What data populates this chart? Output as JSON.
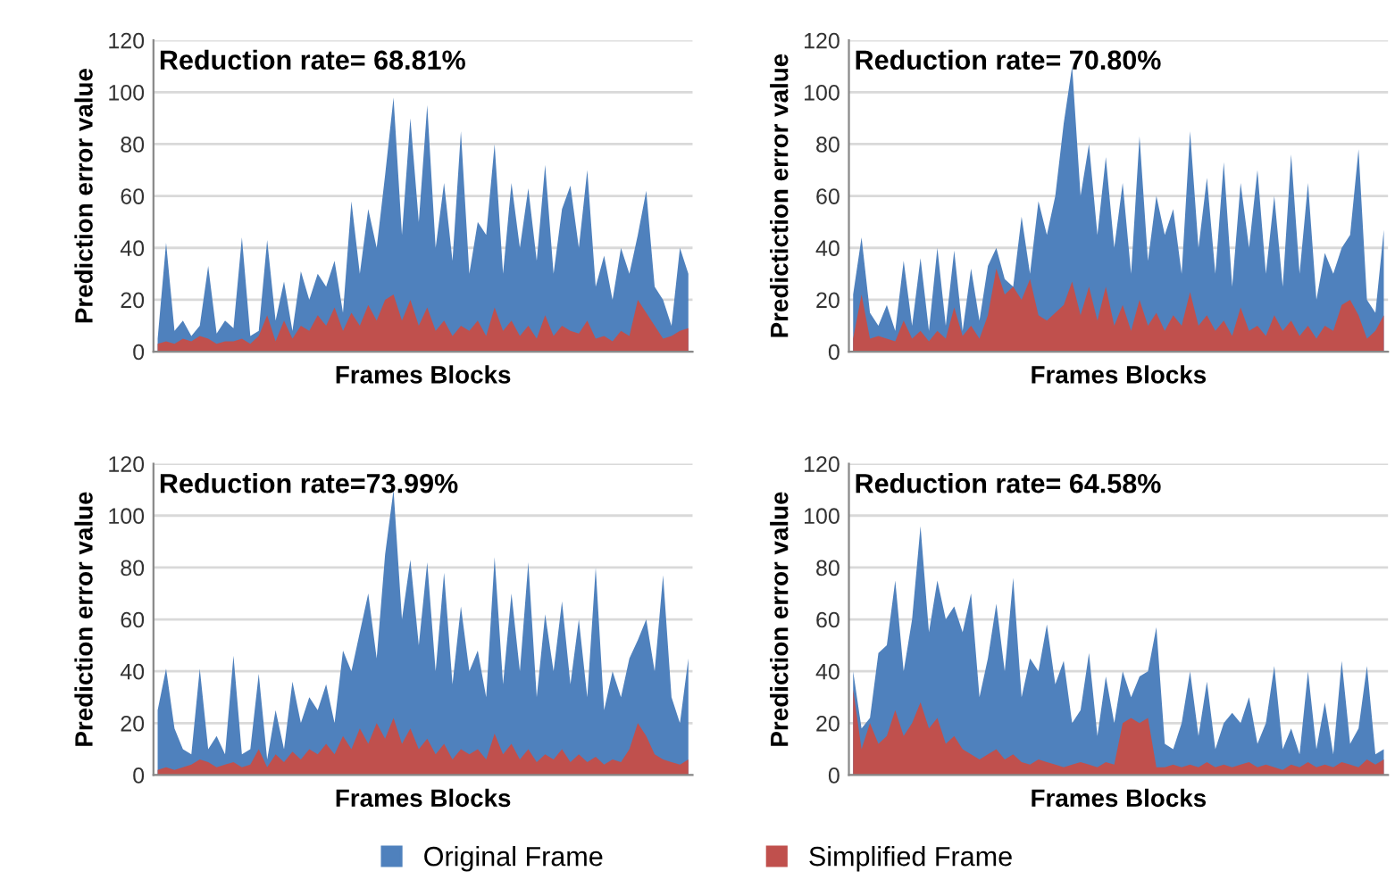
{
  "chart_data": [
    {
      "type": "area",
      "xlabel": "Frames Blocks",
      "ylabel": "Prediction error value",
      "annotations": [
        "Reduction rate= 68.81%"
      ],
      "ylim": [
        0,
        120
      ],
      "yticks": [
        0,
        20,
        40,
        60,
        80,
        100,
        120
      ],
      "grid": "y",
      "legend": false,
      "categories": [
        null,
        null,
        null,
        null,
        null,
        null,
        null,
        null,
        null,
        null,
        null,
        null,
        null,
        null,
        null,
        null,
        null,
        null,
        null,
        null,
        null,
        null,
        null,
        null,
        null,
        null,
        null,
        null,
        null,
        null,
        null,
        null,
        null,
        null,
        null,
        null,
        null,
        null,
        null,
        null,
        null,
        null,
        null,
        null,
        null,
        null,
        null,
        null,
        null,
        null,
        null,
        null,
        null,
        null,
        null,
        null,
        null,
        null,
        null,
        null,
        null,
        null,
        null,
        null
      ],
      "series": [
        {
          "color": "#4f81bd",
          "values": [
            5,
            42,
            8,
            12,
            6,
            10,
            33,
            7,
            12,
            9,
            44,
            6,
            8,
            43,
            12,
            27,
            8,
            31,
            20,
            30,
            25,
            35,
            15,
            58,
            30,
            55,
            40,
            68,
            98,
            45,
            90,
            50,
            95,
            40,
            65,
            35,
            85,
            30,
            50,
            45,
            80,
            30,
            65,
            40,
            63,
            35,
            72,
            30,
            55,
            64,
            40,
            70,
            25,
            37,
            20,
            40,
            30,
            45,
            62,
            25,
            20,
            10,
            40,
            30
          ]
        },
        {
          "color": "#c0504d",
          "values": [
            3,
            4,
            3,
            5,
            4,
            6,
            5,
            3,
            4,
            4,
            5,
            3,
            6,
            14,
            4,
            12,
            5,
            10,
            8,
            14,
            10,
            17,
            8,
            15,
            10,
            18,
            12,
            20,
            22,
            12,
            20,
            10,
            17,
            8,
            12,
            6,
            10,
            8,
            12,
            6,
            17,
            8,
            12,
            6,
            10,
            5,
            14,
            6,
            10,
            8,
            7,
            12,
            5,
            6,
            4,
            8,
            6,
            20,
            15,
            10,
            5,
            6,
            8,
            9
          ]
        }
      ]
    },
    {
      "type": "area",
      "xlabel": "Frames Blocks",
      "ylabel": "Predictiction error value",
      "annotations": [
        "Reduction rate= 70.80%"
      ],
      "ylim": [
        0,
        120
      ],
      "yticks": [
        0,
        20,
        40,
        60,
        80,
        100,
        120
      ],
      "grid": "y",
      "legend": false,
      "categories": [
        null,
        null,
        null,
        null,
        null,
        null,
        null,
        null,
        null,
        null,
        null,
        null,
        null,
        null,
        null,
        null,
        null,
        null,
        null,
        null,
        null,
        null,
        null,
        null,
        null,
        null,
        null,
        null,
        null,
        null,
        null,
        null,
        null,
        null,
        null,
        null,
        null,
        null,
        null,
        null,
        null,
        null,
        null,
        null,
        null,
        null,
        null,
        null,
        null,
        null,
        null,
        null,
        null,
        null,
        null,
        null,
        null,
        null,
        null,
        null,
        null,
        null,
        null,
        null
      ],
      "series": [
        {
          "color": "#4f81bd",
          "values": [
            22,
            44,
            15,
            10,
            18,
            8,
            35,
            10,
            36,
            8,
            40,
            10,
            39,
            8,
            32,
            12,
            33,
            40,
            28,
            25,
            52,
            30,
            58,
            45,
            60,
            88,
            110,
            60,
            80,
            45,
            75,
            40,
            65,
            30,
            83,
            35,
            60,
            45,
            55,
            30,
            85,
            40,
            67,
            30,
            73,
            25,
            65,
            40,
            70,
            30,
            60,
            25,
            76,
            30,
            65,
            20,
            38,
            30,
            40,
            45,
            78,
            20,
            15,
            47
          ]
        },
        {
          "color": "#c0504d",
          "values": [
            5,
            22,
            5,
            6,
            5,
            4,
            12,
            5,
            8,
            4,
            8,
            5,
            17,
            6,
            10,
            5,
            14,
            32,
            22,
            25,
            20,
            28,
            14,
            12,
            15,
            18,
            27,
            14,
            25,
            12,
            25,
            10,
            18,
            8,
            20,
            10,
            15,
            8,
            14,
            10,
            23,
            10,
            14,
            8,
            12,
            6,
            17,
            8,
            10,
            6,
            14,
            8,
            12,
            6,
            10,
            5,
            10,
            8,
            18,
            20,
            14,
            5,
            8,
            14
          ]
        }
      ]
    },
    {
      "type": "area",
      "xlabel": "Frames Blocks",
      "ylabel": "Prediction error value",
      "annotations": [
        "Reduction rate=73.99%"
      ],
      "ylim": [
        0,
        120
      ],
      "yticks": [
        0,
        20,
        40,
        60,
        80,
        100,
        120
      ],
      "grid": "y",
      "legend": false,
      "categories": [
        null,
        null,
        null,
        null,
        null,
        null,
        null,
        null,
        null,
        null,
        null,
        null,
        null,
        null,
        null,
        null,
        null,
        null,
        null,
        null,
        null,
        null,
        null,
        null,
        null,
        null,
        null,
        null,
        null,
        null,
        null,
        null,
        null,
        null,
        null,
        null,
        null,
        null,
        null,
        null,
        null,
        null,
        null,
        null,
        null,
        null,
        null,
        null,
        null,
        null,
        null,
        null,
        null,
        null,
        null,
        null,
        null,
        null,
        null,
        null,
        null,
        null,
        null,
        null
      ],
      "series": [
        {
          "color": "#4f81bd",
          "values": [
            25,
            41,
            18,
            10,
            8,
            41,
            10,
            15,
            8,
            46,
            8,
            10,
            39,
            6,
            25,
            10,
            36,
            20,
            30,
            25,
            35,
            20,
            48,
            40,
            55,
            70,
            45,
            85,
            110,
            60,
            83,
            50,
            82,
            40,
            78,
            35,
            65,
            40,
            48,
            30,
            84,
            35,
            70,
            40,
            82,
            30,
            62,
            40,
            67,
            35,
            60,
            30,
            80,
            25,
            40,
            30,
            45,
            52,
            60,
            40,
            77,
            30,
            20,
            45
          ]
        },
        {
          "color": "#c0504d",
          "values": [
            2,
            3,
            2,
            3,
            4,
            6,
            5,
            3,
            4,
            5,
            3,
            4,
            10,
            3,
            8,
            5,
            9,
            6,
            10,
            8,
            12,
            8,
            15,
            10,
            18,
            12,
            20,
            14,
            22,
            12,
            18,
            10,
            14,
            8,
            12,
            6,
            10,
            8,
            10,
            6,
            16,
            8,
            12,
            6,
            10,
            5,
            8,
            6,
            10,
            5,
            8,
            5,
            7,
            4,
            6,
            5,
            10,
            20,
            15,
            8,
            6,
            5,
            4,
            6
          ]
        }
      ]
    },
    {
      "type": "area",
      "xlabel": "Frames Blocks",
      "ylabel": "Prediction error value",
      "annotations": [
        "Reduction rate= 64.58%"
      ],
      "ylim": [
        0,
        120
      ],
      "yticks": [
        0,
        20,
        40,
        60,
        80,
        100,
        120
      ],
      "grid": "y",
      "legend": "bottom",
      "categories": [
        null,
        null,
        null,
        null,
        null,
        null,
        null,
        null,
        null,
        null,
        null,
        null,
        null,
        null,
        null,
        null,
        null,
        null,
        null,
        null,
        null,
        null,
        null,
        null,
        null,
        null,
        null,
        null,
        null,
        null,
        null,
        null,
        null,
        null,
        null,
        null,
        null,
        null,
        null,
        null,
        null,
        null,
        null,
        null,
        null,
        null,
        null,
        null,
        null,
        null,
        null,
        null,
        null,
        null,
        null,
        null,
        null,
        null,
        null,
        null,
        null,
        null,
        null,
        null
      ],
      "series": [
        {
          "name": "Original Frame",
          "color": "#4f81bd",
          "values": [
            40,
            18,
            22,
            47,
            50,
            75,
            40,
            60,
            96,
            55,
            75,
            60,
            65,
            55,
            70,
            30,
            45,
            66,
            40,
            76,
            30,
            45,
            40,
            58,
            35,
            44,
            20,
            25,
            47,
            15,
            38,
            20,
            40,
            30,
            38,
            40,
            57,
            12,
            10,
            20,
            40,
            15,
            36,
            10,
            20,
            24,
            20,
            30,
            12,
            20,
            42,
            10,
            18,
            8,
            40,
            10,
            28,
            8,
            44,
            12,
            18,
            42,
            8,
            10
          ]
        },
        {
          "name": "Simplified Frame",
          "color": "#c0504d",
          "values": [
            33,
            10,
            20,
            12,
            15,
            25,
            15,
            20,
            28,
            18,
            22,
            12,
            15,
            10,
            8,
            6,
            8,
            10,
            6,
            8,
            5,
            4,
            6,
            5,
            4,
            3,
            4,
            5,
            4,
            3,
            5,
            4,
            20,
            22,
            20,
            22,
            3,
            3,
            4,
            3,
            4,
            3,
            5,
            3,
            4,
            3,
            4,
            5,
            3,
            4,
            3,
            2,
            4,
            3,
            5,
            3,
            4,
            3,
            5,
            4,
            3,
            6,
            4,
            6
          ]
        }
      ]
    }
  ]
}
